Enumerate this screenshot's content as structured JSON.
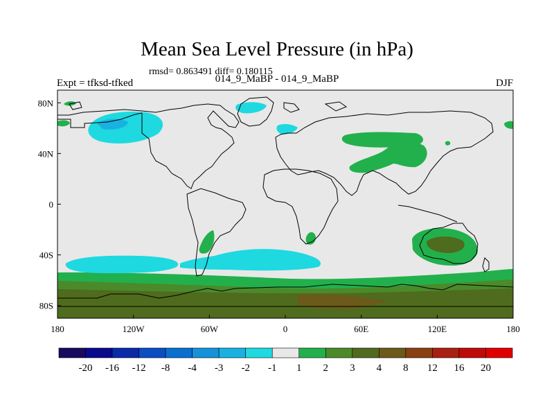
{
  "title": "Mean Sea Level Pressure (in hPa)",
  "stats": "rmsd= 0.863491 diff= 0.180115",
  "subtitle": "014_9_MaBP - 014_9_MaBP",
  "left_label": "Expt = tfksd-tfked",
  "right_label": "DJF",
  "colors": {
    "background_land": "#e8e8e8",
    "coast": "#000000",
    "cyan": "#1ed9e0",
    "blue": "#19b2e0",
    "green": "#22b04c",
    "green_dark": "#4a8a2a",
    "olive": "#4f6b1d",
    "brown": "#6b5a1a"
  },
  "chart_data": {
    "type": "heatmap",
    "title": "Mean Sea Level Pressure (in hPa)",
    "x_ticks": [
      "180",
      "120W",
      "60W",
      "0",
      "60E",
      "120E",
      "180"
    ],
    "x_values": [
      -180,
      -120,
      -60,
      0,
      60,
      120,
      180
    ],
    "y_ticks": [
      "80N",
      "40N",
      "0",
      "40S",
      "80S"
    ],
    "y_values": [
      80,
      40,
      0,
      -40,
      -80
    ],
    "xlim": [
      -180,
      180
    ],
    "ylim": [
      -90,
      90
    ],
    "colorbar_labels": [
      "-20",
      "-16",
      "-12",
      "-8",
      "-4",
      "-3",
      "-2",
      "-1",
      "1",
      "2",
      "3",
      "4",
      "8",
      "12",
      "16",
      "20"
    ],
    "colorbar_colors": [
      "#1a0a5e",
      "#0a0a8c",
      "#0a2aa8",
      "#0b4dc2",
      "#0a70d0",
      "#1592d8",
      "#19b2e0",
      "#1ed9e0",
      "#e8e8e8",
      "#22b04c",
      "#4a8a2a",
      "#4f6b1d",
      "#6b5a1a",
      "#8a4010",
      "#a82010",
      "#c00a0a",
      "#e00000"
    ]
  }
}
